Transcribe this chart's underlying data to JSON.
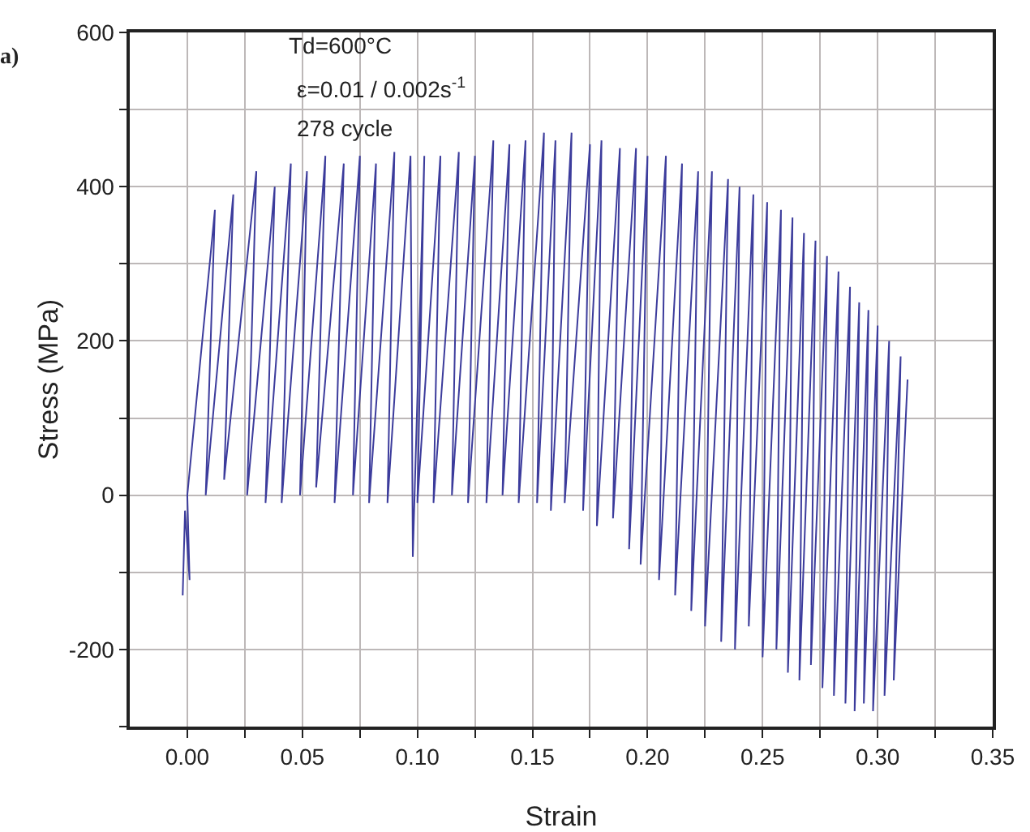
{
  "chart_data": {
    "type": "line",
    "xlabel": "Strain",
    "ylabel": "Stress (MPa)",
    "annotations": [
      "a)",
      "Td=600°C",
      "ε=0.01 / 0.002s$^{-1}$",
      "278 cycle"
    ],
    "series": [
      {
        "color": "#3c3c9c",
        "x": [
          -0.002,
          -0.001,
          0.001,
          0.0,
          0.012,
          0.008,
          0.02,
          0.016,
          0.03,
          0.026,
          0.038,
          0.034,
          0.045,
          0.041,
          0.052,
          0.049,
          0.06,
          0.056,
          0.068,
          0.064,
          0.075,
          0.072,
          0.082,
          0.079,
          0.09,
          0.087,
          0.097,
          0.098,
          0.103,
          0.1,
          0.11,
          0.107,
          0.118,
          0.115,
          0.125,
          0.122,
          0.133,
          0.13,
          0.14,
          0.137,
          0.147,
          0.144,
          0.155,
          0.152,
          0.16,
          0.158,
          0.167,
          0.164,
          0.175,
          0.172,
          0.18,
          0.178,
          0.188,
          0.185,
          0.195,
          0.192,
          0.2,
          0.197,
          0.208,
          0.205,
          0.215,
          0.212,
          0.222,
          0.219,
          0.228,
          0.225,
          0.235,
          0.232,
          0.24,
          0.238,
          0.246,
          0.244,
          0.252,
          0.25,
          0.258,
          0.256,
          0.263,
          0.261,
          0.268,
          0.266,
          0.273,
          0.271,
          0.278,
          0.276,
          0.283,
          0.281,
          0.288,
          0.286,
          0.292,
          0.29,
          0.296,
          0.294,
          0.3,
          0.298,
          0.305,
          0.303,
          0.31,
          0.307,
          0.313
        ],
        "values": [
          -130,
          -20,
          -110,
          0,
          370,
          0,
          390,
          20,
          420,
          0,
          400,
          -10,
          430,
          -10,
          420,
          0,
          440,
          10,
          430,
          -10,
          440,
          0,
          430,
          -10,
          445,
          -10,
          440,
          -80,
          440,
          -10,
          440,
          -10,
          445,
          0,
          440,
          -10,
          460,
          -10,
          455,
          0,
          460,
          -10,
          470,
          -10,
          460,
          -20,
          470,
          -10,
          455,
          -20,
          460,
          -40,
          450,
          -30,
          450,
          -70,
          440,
          -90,
          440,
          -110,
          430,
          -130,
          420,
          -150,
          420,
          -170,
          410,
          -190,
          400,
          -200,
          390,
          -170,
          380,
          -210,
          370,
          -200,
          360,
          -230,
          340,
          -240,
          330,
          -220,
          310,
          -250,
          290,
          -260,
          270,
          -270,
          250,
          -280,
          240,
          -270,
          220,
          -280,
          200,
          -260,
          180,
          -240,
          150
        ]
      }
    ],
    "xlim": [
      -0.025,
      0.35
    ],
    "xticks": [
      {
        "value": 0,
        "label": "0.00"
      },
      {
        "value": 0.025,
        "label": null
      },
      {
        "value": 0.05,
        "label": "0.05"
      },
      {
        "value": 0.075,
        "label": null
      },
      {
        "value": 0.1,
        "label": "0.10"
      },
      {
        "value": 0.125,
        "label": null
      },
      {
        "value": 0.15,
        "label": "0.15"
      },
      {
        "value": 0.175,
        "label": null
      },
      {
        "value": 0.2,
        "label": "0.20"
      },
      {
        "value": 0.225,
        "label": null
      },
      {
        "value": 0.25,
        "label": "0.25"
      },
      {
        "value": 0.275,
        "label": null
      },
      {
        "value": 0.3,
        "label": "0.30"
      },
      {
        "value": 0.325,
        "label": null
      },
      {
        "value": 0.35,
        "label": "0.35"
      }
    ],
    "ylim": [
      -300,
      600
    ],
    "yticks": [
      {
        "value": -300,
        "label": null
      },
      -200,
      {
        "value": -100,
        "label": null
      },
      0,
      {
        "value": 100,
        "label": null
      },
      200,
      {
        "value": 300,
        "label": null
      },
      400,
      {
        "value": 500,
        "label": null
      },
      600
    ],
    "grid": true,
    "marker": "none",
    "line_style": "solid"
  }
}
